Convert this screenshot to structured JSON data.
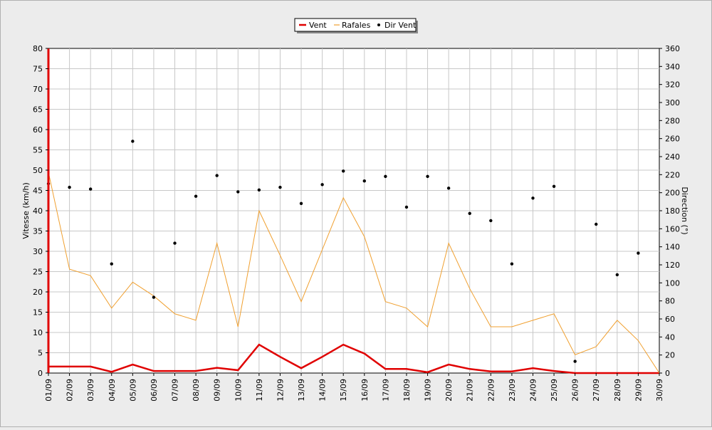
{
  "colors": {
    "background": "#ececec",
    "plot_background": "#ffffff",
    "grid": "#c8c8c8",
    "wind": "#e00000",
    "gusts": "#f0a030",
    "direction": "#000000",
    "text": "#000000"
  },
  "chart_data": {
    "type": "line",
    "ylabel": "Vitesse (km/h)",
    "y2label": "Direction (°)",
    "ylim": [
      0,
      80
    ],
    "y2lim": [
      0,
      360
    ],
    "yticks": [
      "0",
      "5",
      "10",
      "15",
      "20",
      "25",
      "30",
      "35",
      "40",
      "45",
      "50",
      "55",
      "60",
      "65",
      "70",
      "75",
      "80"
    ],
    "y2ticks": [
      "0",
      "20",
      "40",
      "60",
      "80",
      "100",
      "120",
      "140",
      "160",
      "180",
      "200",
      "220",
      "240",
      "260",
      "280",
      "300",
      "320",
      "340",
      "360"
    ],
    "grid": true,
    "legend_position": "top-center",
    "categories": [
      "01/09",
      "02/09",
      "03/09",
      "04/09",
      "05/09",
      "06/09",
      "07/09",
      "08/09",
      "09/09",
      "10/09",
      "11/09",
      "12/09",
      "13/09",
      "14/09",
      "15/09",
      "16/09",
      "17/09",
      "18/09",
      "19/09",
      "20/09",
      "21/09",
      "22/09",
      "23/09",
      "24/09",
      "25/09",
      "26/09",
      "27/09",
      "28/09",
      "29/09",
      "30/09"
    ],
    "series": [
      {
        "name": "Vent",
        "type": "line",
        "axis": "left",
        "values": [
          1.6,
          1.6,
          1.6,
          0.3,
          2.1,
          0.5,
          0.5,
          0.5,
          1.3,
          0.7,
          7.0,
          4.0,
          1.2,
          4.0,
          7.0,
          4.8,
          1.0,
          1.0,
          0.2,
          2.1,
          1.0,
          0.4,
          0.4,
          1.2,
          0.5,
          0,
          0,
          0,
          0,
          0
        ]
      },
      {
        "name": "Rafales",
        "type": "line",
        "axis": "left",
        "values": [
          49.5,
          25.6,
          24.0,
          16.0,
          22.4,
          19.0,
          14.6,
          13.0,
          32.0,
          11.4,
          40.0,
          29.0,
          17.6,
          30.4,
          43.2,
          33.6,
          17.6,
          16.0,
          11.4,
          32.0,
          20.8,
          11.4,
          11.4,
          13.0,
          14.6,
          4.5,
          6.5,
          13.0,
          8.0,
          0
        ]
      },
      {
        "name": "Dir Vent",
        "type": "scatter",
        "axis": "right",
        "values": [
          210,
          206,
          204,
          121,
          257,
          84,
          144,
          196,
          219,
          201,
          203,
          206,
          188,
          209,
          224,
          213,
          218,
          184,
          218,
          205,
          177,
          169,
          121,
          194,
          207,
          13,
          165,
          109,
          133,
          null
        ]
      }
    ]
  }
}
